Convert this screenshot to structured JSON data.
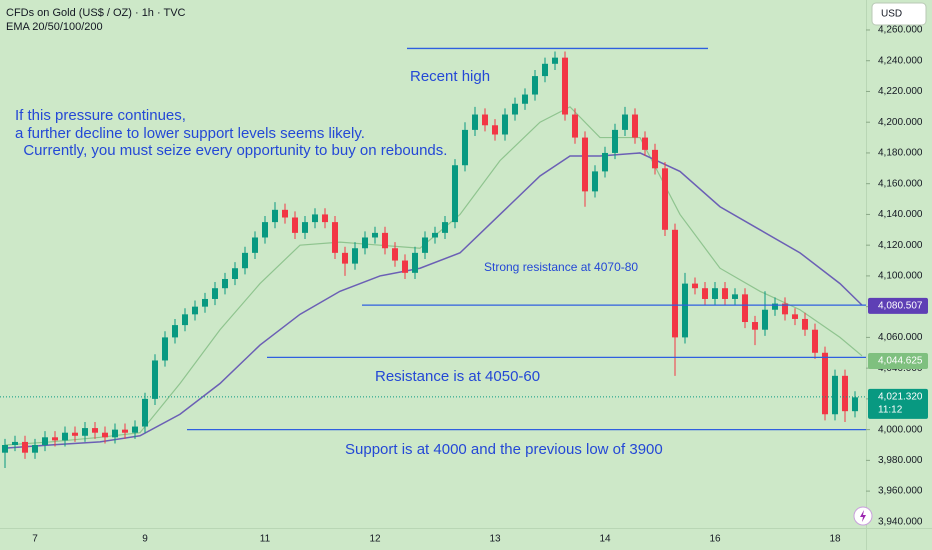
{
  "chart_data": {
    "type": "candlestick",
    "title": "CFDs on Gold (US$ / OZ) · 1h · TVC",
    "subtitle": "EMA 20/50/100/200",
    "currency": "USD",
    "up_color": "#089981",
    "down_color": "#f23645",
    "categories": [
      null,
      null,
      null,
      "7",
      null,
      null,
      null,
      null,
      null,
      null,
      null,
      null,
      null,
      null,
      "9",
      null,
      null,
      null,
      null,
      null,
      null,
      null,
      null,
      null,
      null,
      null,
      "11",
      null,
      null,
      null,
      null,
      null,
      null,
      null,
      null,
      null,
      null,
      "12",
      null,
      null,
      null,
      null,
      null,
      null,
      null,
      null,
      null,
      null,
      null,
      "13",
      null,
      null,
      null,
      null,
      null,
      null,
      null,
      null,
      null,
      null,
      "14",
      null,
      null,
      null,
      null,
      null,
      null,
      null,
      null,
      null,
      null,
      "16",
      null,
      null,
      null,
      null,
      null,
      null,
      null,
      null,
      null,
      null,
      null,
      "18",
      null,
      null
    ],
    "open": [
      3985,
      3990,
      3992,
      3985,
      3990,
      3995,
      3993,
      3998,
      3996,
      4001,
      3998,
      3995,
      4000,
      3998,
      4002,
      4020,
      4045,
      4060,
      4068,
      4075,
      4080,
      4085,
      4092,
      4098,
      4105,
      4115,
      4125,
      4135,
      4143,
      4138,
      4128,
      4135,
      4140,
      4135,
      4115,
      4108,
      4118,
      4125,
      4128,
      4118,
      4110,
      4102,
      4115,
      4125,
      4128,
      4135,
      4172,
      4195,
      4205,
      4198,
      4192,
      4205,
      4212,
      4218,
      4230,
      4238,
      4242,
      4205,
      4190,
      4155,
      4168,
      4180,
      4195,
      4205,
      4190,
      4182,
      4170,
      4130,
      4060,
      4095,
      4092,
      4085,
      4092,
      4085,
      4088,
      4070,
      4065,
      4078,
      4082,
      4075,
      4072,
      4065,
      4050,
      4010,
      4035,
      4012
    ],
    "high": [
      3994,
      3996,
      3996,
      3994,
      3999,
      3999,
      4002,
      4002,
      4005,
      4005,
      4002,
      4004,
      4004,
      4006,
      4024,
      4049,
      4064,
      4072,
      4079,
      4084,
      4089,
      4096,
      4102,
      4109,
      4119,
      4129,
      4139,
      4148,
      4147,
      4142,
      4139,
      4144,
      4144,
      4139,
      4119,
      4122,
      4129,
      4132,
      4132,
      4122,
      4114,
      4119,
      4129,
      4132,
      4139,
      4176,
      4200,
      4210,
      4209,
      4202,
      4209,
      4216,
      4222,
      4234,
      4242,
      4246,
      4246,
      4209,
      4194,
      4172,
      4184,
      4199,
      4210,
      4209,
      4194,
      4186,
      4174,
      4134,
      4102,
      4099,
      4096,
      4096,
      4096,
      4092,
      4092,
      4074,
      4090,
      4086,
      4086,
      4079,
      4076,
      4069,
      4054,
      4039,
      4039,
      4025
    ],
    "low": [
      3975,
      3986,
      3981,
      3981,
      3986,
      3989,
      3989,
      3992,
      3992,
      3994,
      3991,
      3991,
      3994,
      3994,
      3998,
      4016,
      4041,
      4056,
      4064,
      4071,
      4076,
      4081,
      4088,
      4094,
      4101,
      4111,
      4121,
      4131,
      4134,
      4124,
      4124,
      4131,
      4131,
      4111,
      4100,
      4104,
      4114,
      4121,
      4114,
      4106,
      4098,
      4098,
      4111,
      4121,
      4124,
      4131,
      4168,
      4191,
      4194,
      4188,
      4188,
      4201,
      4208,
      4214,
      4226,
      4234,
      4201,
      4186,
      4145,
      4151,
      4164,
      4176,
      4191,
      4186,
      4178,
      4166,
      4126,
      4035,
      4056,
      4088,
      4081,
      4081,
      4081,
      4081,
      4066,
      4055,
      4061,
      4074,
      4071,
      4068,
      4061,
      4046,
      4006,
      4006,
      4005,
      4008
    ],
    "close": [
      3990,
      3992,
      3985,
      3990,
      3995,
      3993,
      3998,
      3996,
      4001,
      3998,
      3995,
      4000,
      3998,
      4002,
      4020,
      4045,
      4060,
      4068,
      4075,
      4080,
      4085,
      4092,
      4098,
      4105,
      4115,
      4125,
      4135,
      4143,
      4138,
      4128,
      4135,
      4140,
      4135,
      4115,
      4108,
      4118,
      4125,
      4128,
      4118,
      4110,
      4102,
      4115,
      4125,
      4128,
      4135,
      4172,
      4195,
      4205,
      4198,
      4192,
      4205,
      4212,
      4218,
      4230,
      4238,
      4242,
      4205,
      4190,
      4155,
      4168,
      4180,
      4195,
      4205,
      4190,
      4182,
      4170,
      4130,
      4060,
      4095,
      4092,
      4085,
      4092,
      4085,
      4088,
      4070,
      4065,
      4078,
      4082,
      4075,
      4072,
      4065,
      4050,
      4010,
      4035,
      4012,
      4021
    ],
    "series": [
      {
        "color": "#8fc48f",
        "x": [
          0,
          4.5,
          9.5,
          13.5,
          17.5,
          21.5,
          25.5,
          29.5,
          33.5,
          37.5,
          41.5,
          45.5,
          49.5,
          53.5,
          56.5,
          59.5,
          63.5,
          67.5,
          71.5,
          75.5,
          79.5,
          83.5,
          85.7
        ],
        "values": [
          3990,
          3992,
          3995,
          3998,
          4030,
          4065,
          4095,
          4120,
          4122,
          4120,
          4118,
          4140,
          4175,
          4200,
          4210,
          4190,
          4190,
          4140,
          4105,
          4090,
          4078,
          4060,
          4048
        ]
      },
      {
        "color": "#6b5fb5",
        "x": [
          0,
          4.5,
          9.5,
          13.5,
          17.5,
          21.5,
          25.5,
          29.5,
          33.5,
          37.5,
          41.5,
          45.5,
          49.5,
          53.5,
          56.5,
          59.5,
          63.5,
          67.5,
          71.5,
          75.5,
          79.5,
          83.5,
          85.7
        ],
        "values": [
          3988,
          3990,
          3992,
          3996,
          4010,
          4030,
          4055,
          4075,
          4090,
          4100,
          4105,
          4115,
          4140,
          4165,
          4178,
          4178,
          4180,
          4168,
          4145,
          4130,
          4115,
          4095,
          4081
        ]
      }
    ],
    "levels": [
      {
        "value": 4248,
        "x": [
          40.2,
          70.3
        ]
      },
      {
        "value": 4081,
        "x": [
          35.7,
          86.1
        ]
      },
      {
        "value": 4047,
        "x": [
          26.2,
          86.1
        ]
      },
      {
        "value": 4000,
        "x": [
          18.2,
          86.1
        ]
      }
    ],
    "level_color": "#2f5fe0",
    "annotations": [
      "Recent high",
      "If this pressure continues,",
      "a further decline to lower support levels seems likely.",
      "  Currently, you must seize every opportunity to buy on rebounds.",
      "Strong resistance at 4070-80",
      "Resistance is at 4050-60",
      "Support is at 4000 and the previous low of 3900"
    ],
    "price_labels": [
      {
        "value": 4080.507,
        "label": "4,080.507",
        "color": "#5e3fb5"
      },
      {
        "value": 4044.625,
        "label": "4,044.625",
        "color": "#7fc07f"
      },
      {
        "value": 4021.32,
        "label": "4,021.320",
        "color": "#089981"
      }
    ],
    "countdown": "11:12",
    "ylim": [
      3936,
      4279.5
    ],
    "yticks": [
      {
        "value": 3940,
        "label": "3,940.000"
      },
      {
        "value": 3960,
        "label": "3,960.000"
      },
      {
        "value": 3980,
        "label": "3,980.000"
      },
      {
        "value": 4000,
        "label": "4,000.000"
      },
      {
        "value": 4020,
        "label": "4,020.000"
      },
      {
        "value": 4040,
        "label": "4,040.000"
      },
      {
        "value": 4060,
        "label": "4,060.000"
      },
      {
        "value": 4080,
        "label": "4,080.000"
      },
      {
        "value": 4100,
        "label": "4,100.000"
      },
      {
        "value": 4120,
        "label": "4,120.000"
      },
      {
        "value": 4140,
        "label": "4,140.000"
      },
      {
        "value": 4160,
        "label": "4,160.000"
      },
      {
        "value": 4180,
        "label": "4,180.000"
      },
      {
        "value": 4200,
        "label": "4,200.000"
      },
      {
        "value": 4220,
        "label": "4,220.000"
      },
      {
        "value": 4240,
        "label": "4,240.000"
      },
      {
        "value": 4260,
        "label": "4,260.000"
      }
    ]
  }
}
